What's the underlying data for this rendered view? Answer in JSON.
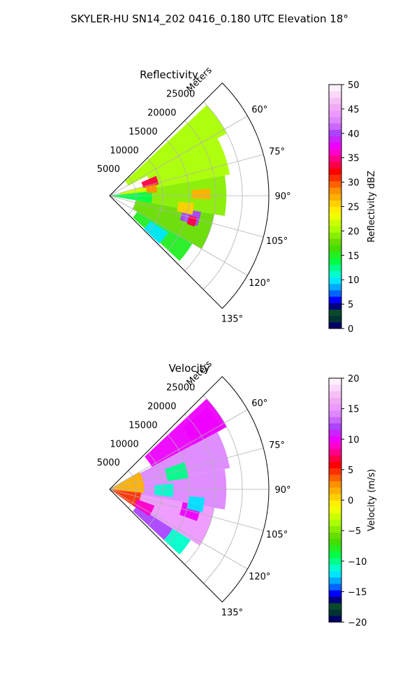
{
  "figure": {
    "suptitle": "SKYLER-HU  SN14_202  0416_0.180 UTC Elevation 18°"
  },
  "chart_data": [
    {
      "type": "heatmap",
      "projection": "polar-sector",
      "title": "Reflectivity",
      "radial_label": "Meters",
      "radial_ticks": [
        5000,
        10000,
        15000,
        20000,
        25000
      ],
      "radial_tick_labels": [
        "5000",
        "10000",
        "15000",
        "20000",
        "25000"
      ],
      "r_range": [
        0,
        30000
      ],
      "azimuth_range_deg": [
        45,
        135
      ],
      "azimuth_ticks_deg": [
        60,
        75,
        90,
        105,
        120,
        135
      ],
      "azimuth_tick_labels": [
        "60°",
        "75°",
        "90°",
        "105°",
        "120°",
        "135°"
      ],
      "grid": true,
      "colorbar": {
        "label": "Reflectivity dBZ",
        "range": [
          0,
          50
        ],
        "ticks": [
          0,
          5,
          10,
          15,
          20,
          25,
          30,
          35,
          40,
          45,
          50
        ],
        "tick_labels": [
          "0",
          "5",
          "10",
          "15",
          "20",
          "25",
          "30",
          "35",
          "40",
          "45",
          "50"
        ],
        "colors": [
          "#000066",
          "#003333",
          "#0a4a2a",
          "#000080",
          "#0000ff",
          "#0066ff",
          "#00aaff",
          "#00e5ff",
          "#00ffcc",
          "#00ff88",
          "#00ff44",
          "#22ee22",
          "#44dd00",
          "#66dd00",
          "#88ee00",
          "#aaff00",
          "#ccff00",
          "#eeff00",
          "#ffee00",
          "#ffd000",
          "#ffb000",
          "#ff9000",
          "#ff6000",
          "#ff3000",
          "#ff0000",
          "#ff0044",
          "#ff0088",
          "#ff00cc",
          "#ee00ff",
          "#cc22ff",
          "#aa44ff",
          "#cc66ff",
          "#dd88ff",
          "#ee99ff",
          "#f0aaf5",
          "#f5c0f5",
          "#f9d8f9",
          "#fdf0fd"
        ]
      },
      "regions": [
        {
          "az_deg": [
            47,
            62
          ],
          "r_m": [
            4000,
            25000
          ],
          "value": 20
        },
        {
          "az_deg": [
            62,
            80
          ],
          "r_m": [
            8000,
            23000
          ],
          "value": 20
        },
        {
          "az_deg": [
            80,
            100
          ],
          "r_m": [
            6000,
            22000
          ],
          "value": 19
        },
        {
          "az_deg": [
            100,
            120
          ],
          "r_m": [
            5000,
            20000
          ],
          "value": 18
        },
        {
          "az_deg": [
            120,
            133
          ],
          "r_m": [
            6000,
            18000
          ],
          "value": 15
        },
        {
          "az_deg": [
            82,
            100
          ],
          "r_m": [
            0,
            8000
          ],
          "value": 14
        },
        {
          "az_deg": [
            75,
            84
          ],
          "r_m": [
            2000,
            8000
          ],
          "value": 22
        },
        {
          "az_deg": [
            67,
            77
          ],
          "r_m": [
            6500,
            9500
          ],
          "value": 34
        },
        {
          "az_deg": [
            76,
            86
          ],
          "r_m": [
            7000,
            9000
          ],
          "value": 28
        },
        {
          "az_deg": [
            86,
            92
          ],
          "r_m": [
            15500,
            19000
          ],
          "value": 27
        },
        {
          "az_deg": [
            100,
            109
          ],
          "r_m": [
            14000,
            17500
          ],
          "value": 40
        },
        {
          "az_deg": [
            104,
            110
          ],
          "r_m": [
            15500,
            17000
          ],
          "value": 34
        },
        {
          "az_deg": [
            95,
            103
          ],
          "r_m": [
            13000,
            16000
          ],
          "value": 25
        },
        {
          "az_deg": [
            122,
            134
          ],
          "r_m": [
            9000,
            13000
          ],
          "value": 10
        }
      ]
    },
    {
      "type": "heatmap",
      "projection": "polar-sector",
      "title": "Velocity",
      "radial_label": "Meters",
      "radial_ticks": [
        5000,
        10000,
        15000,
        20000,
        25000
      ],
      "radial_tick_labels": [
        "5000",
        "10000",
        "15000",
        "20000",
        "25000"
      ],
      "r_range": [
        0,
        30000
      ],
      "azimuth_range_deg": [
        45,
        135
      ],
      "azimuth_ticks_deg": [
        60,
        75,
        90,
        105,
        120,
        135
      ],
      "azimuth_tick_labels": [
        "60°",
        "75°",
        "90°",
        "105°",
        "120°",
        "135°"
      ],
      "grid": true,
      "colorbar": {
        "label": "Velocity (m/s)",
        "range": [
          -20,
          20
        ],
        "ticks": [
          -20,
          -15,
          -10,
          -5,
          0,
          5,
          10,
          15,
          20
        ],
        "tick_labels": [
          "−20",
          "−15",
          "−10",
          "−5",
          "0",
          "5",
          "10",
          "15",
          "20"
        ],
        "colors": [
          "#000066",
          "#003333",
          "#0a4a2a",
          "#000080",
          "#0000ff",
          "#0066ff",
          "#00aaff",
          "#00e5ff",
          "#00ffcc",
          "#00ff88",
          "#00ff44",
          "#22ee22",
          "#44dd00",
          "#66dd00",
          "#88ee00",
          "#aaff00",
          "#ccff00",
          "#eeff00",
          "#ffee00",
          "#ffd000",
          "#ffb000",
          "#ff9000",
          "#ff6000",
          "#ff3000",
          "#ff0000",
          "#ff0044",
          "#ff0088",
          "#ff00cc",
          "#ee00ff",
          "#cc22ff",
          "#aa44ff",
          "#cc66ff",
          "#dd88ff",
          "#ee99ff",
          "#f0aaf5",
          "#f5c0f5",
          "#f9d8f9",
          "#fdf0fd"
        ]
      },
      "regions": [
        {
          "az_deg": [
            47,
            62
          ],
          "r_m": [
            9000,
            25000
          ],
          "value": 10
        },
        {
          "az_deg": [
            62,
            80
          ],
          "r_m": [
            6000,
            23000
          ],
          "value": 14
        },
        {
          "az_deg": [
            80,
            100
          ],
          "r_m": [
            6000,
            22000
          ],
          "value": 14
        },
        {
          "az_deg": [
            100,
            122
          ],
          "r_m": [
            5000,
            20000
          ],
          "value": 15
        },
        {
          "az_deg": [
            122,
            133
          ],
          "r_m": [
            6000,
            14000
          ],
          "value": 12
        },
        {
          "az_deg": [
            122,
            133
          ],
          "r_m": [
            14000,
            18000
          ],
          "value": -11
        },
        {
          "az_deg": [
            60,
            96
          ],
          "r_m": [
            0,
            6500
          ],
          "value": 2
        },
        {
          "az_deg": [
            96,
            125
          ],
          "r_m": [
            0,
            6000
          ],
          "value": 5
        },
        {
          "az_deg": [
            85,
            97
          ],
          "r_m": [
            8500,
            12000
          ],
          "value": -11
        },
        {
          "az_deg": [
            70,
            82
          ],
          "r_m": [
            11000,
            15000
          ],
          "value": -10
        },
        {
          "az_deg": [
            50,
            62
          ],
          "r_m": [
            18000,
            24000
          ],
          "value": 10
        },
        {
          "az_deg": [
            100,
            110
          ],
          "r_m": [
            14000,
            17500
          ],
          "value": 10
        },
        {
          "az_deg": [
            110,
            124
          ],
          "r_m": [
            5500,
            9000
          ],
          "value": 9
        },
        {
          "az_deg": [
            95,
            104
          ],
          "r_m": [
            15000,
            18000
          ],
          "value": -12
        }
      ]
    }
  ]
}
